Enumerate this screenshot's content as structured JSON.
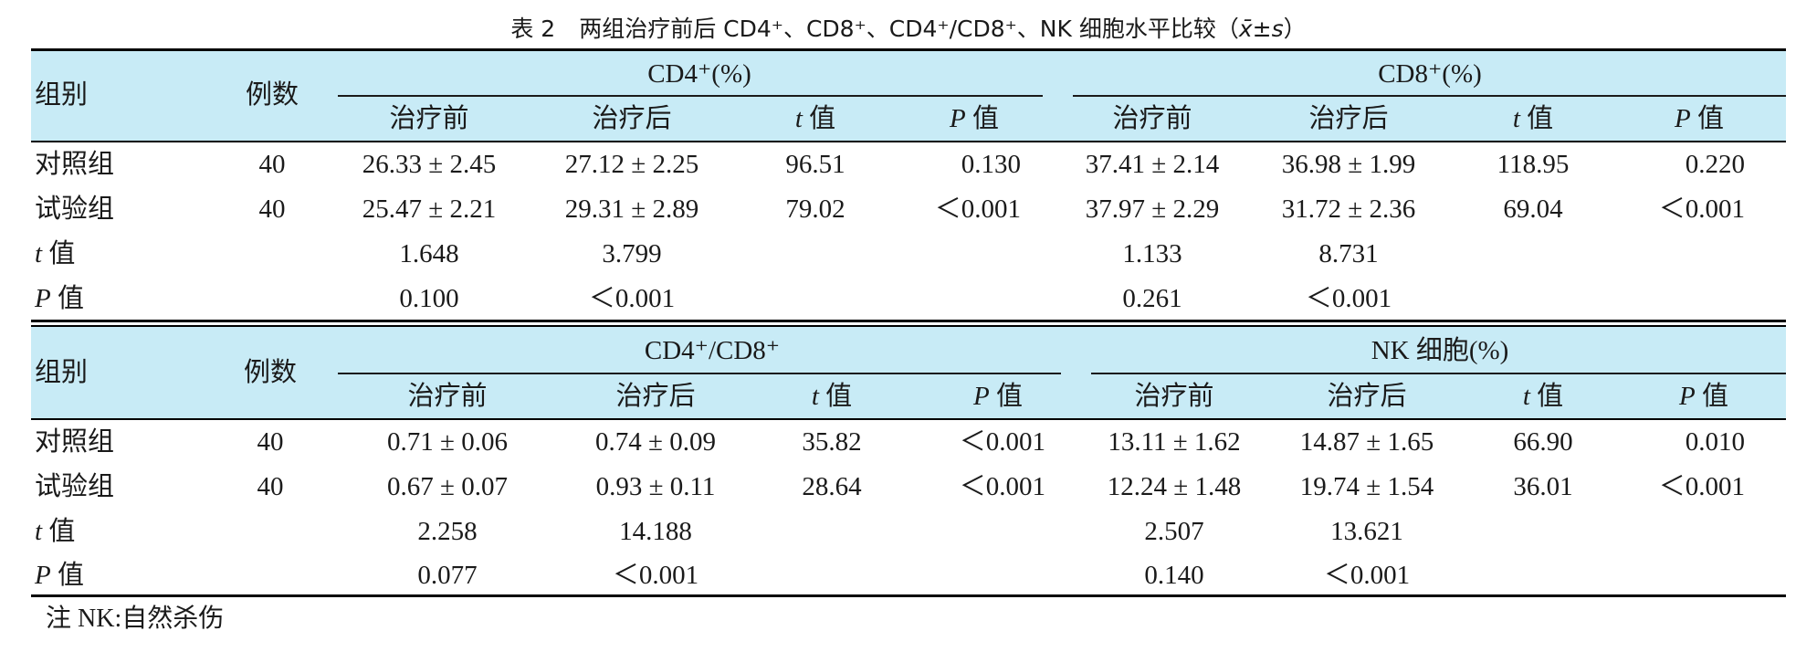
{
  "title": {
    "label": "表 2",
    "text": "两组治疗前后 CD4⁺、CD8⁺、CD4⁺/CD8⁺、NK 细胞水平比较（",
    "stat": "x̄±s",
    "close": "）"
  },
  "headers": {
    "group": "组别",
    "n": "例数",
    "before": "治疗前",
    "after": "治疗后",
    "t_sym": "t",
    "p_sym": "P",
    "value": " 值",
    "panel1_left": "CD4⁺(%)",
    "panel1_right": "CD8⁺(%)",
    "panel2_left": "CD4⁺/CD8⁺",
    "panel2_right": "NK 细胞(%)"
  },
  "panel1": {
    "control": {
      "name": "对照组",
      "n": "40",
      "cells": [
        "26.33 ± 2.45",
        "27.12 ± 2.25",
        "96.51",
        "0.130",
        "37.41 ± 2.14",
        "36.98 ± 1.99",
        "118.95",
        "0.220"
      ]
    },
    "trial": {
      "name": "试验组",
      "n": "40",
      "cells": [
        "25.47 ± 2.21",
        "29.31 ± 2.89",
        "79.02",
        "＜0.001",
        "37.97 ± 2.29",
        "31.72 ± 2.36",
        "69.04",
        "＜0.001"
      ]
    },
    "t_row": [
      "1.648",
      "3.799",
      "1.133",
      "8.731"
    ],
    "p_row": [
      "0.100",
      "＜0.001",
      "0.261",
      "＜0.001"
    ]
  },
  "panel2": {
    "control": {
      "name": "对照组",
      "n": "40",
      "cells": [
        "0.71 ± 0.06",
        "0.74 ± 0.09",
        "35.82",
        "＜0.001",
        "13.11 ± 1.62",
        "14.87 ± 1.65",
        "66.90",
        "0.010"
      ]
    },
    "trial": {
      "name": "试验组",
      "n": "40",
      "cells": [
        "0.67 ± 0.07",
        "0.93 ± 0.11",
        "28.64",
        "＜0.001",
        "12.24 ± 1.48",
        "19.74 ± 1.54",
        "36.01",
        "＜0.001"
      ]
    },
    "t_row": [
      "2.258",
      "14.188",
      "2.507",
      "13.621"
    ],
    "p_row": [
      "0.077",
      "＜0.001",
      "0.140",
      "＜0.001"
    ]
  },
  "note": "注  NK:自然杀伤"
}
